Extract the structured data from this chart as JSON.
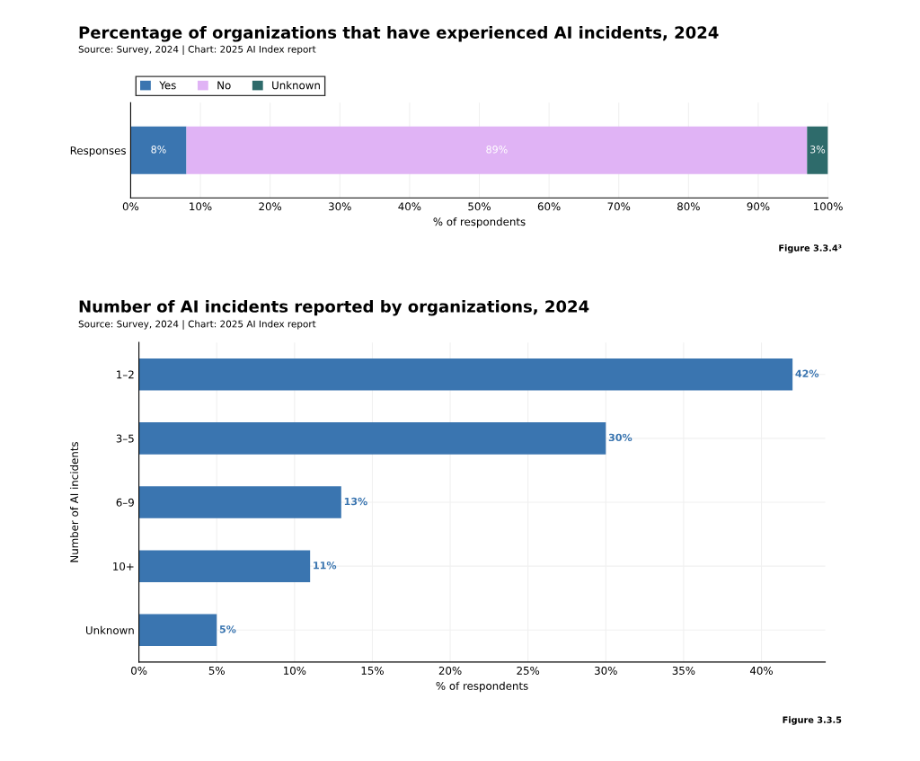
{
  "chart_data": [
    {
      "type": "bar",
      "orientation": "horizontal",
      "stacked": true,
      "title": "Percentage of organizations that have experienced AI incidents, 2024",
      "subtitle": "Source: Survey, 2024 | Chart: 2025 AI Index report",
      "xlabel": "% of respondents",
      "categories": [
        "Responses"
      ],
      "series": [
        {
          "name": "Yes",
          "color": "#3a75b0",
          "values": [
            8
          ],
          "value_labels": [
            "8%"
          ]
        },
        {
          "name": "No",
          "color": "#e0b3f5",
          "values": [
            89
          ],
          "value_labels": [
            "89%"
          ]
        },
        {
          "name": "Unknown",
          "color": "#2e6b6b",
          "values": [
            3
          ],
          "value_labels": [
            "3%"
          ]
        }
      ],
      "xlim": [
        0,
        100
      ],
      "xticks": [
        {
          "value": 0,
          "label": "0%"
        },
        {
          "value": 10,
          "label": "10%"
        },
        {
          "value": 20,
          "label": "20%"
        },
        {
          "value": 30,
          "label": "30%"
        },
        {
          "value": 40,
          "label": "40%"
        },
        {
          "value": 50,
          "label": "50%"
        },
        {
          "value": 60,
          "label": "60%"
        },
        {
          "value": 70,
          "label": "70%"
        },
        {
          "value": 80,
          "label": "80%"
        },
        {
          "value": 90,
          "label": "90%"
        },
        {
          "value": 100,
          "label": "100%"
        }
      ],
      "grid": "x",
      "legend": "top left",
      "annotations": [
        "Figure 3.3.4³"
      ]
    },
    {
      "type": "bar",
      "orientation": "horizontal",
      "title": "Number of AI incidents reported by organizations, 2024",
      "subtitle": "Source: Survey, 2024 | Chart: 2025 AI Index report",
      "xlabel": "% of respondents",
      "ylabel": "Number of AI incidents",
      "categories": [
        "1–2",
        "3–5",
        "6–9",
        "10+",
        "Unknown"
      ],
      "series": [
        {
          "color": "#3a75b0",
          "values": [
            42,
            30,
            13,
            11,
            5
          ],
          "value_labels": [
            "42%",
            "30%",
            "13%",
            "11%",
            "5%"
          ]
        }
      ],
      "xlim": [
        0,
        44.1
      ],
      "xticks": [
        {
          "value": 0,
          "label": "0%"
        },
        {
          "value": 5,
          "label": "5%"
        },
        {
          "value": 10,
          "label": "10%"
        },
        {
          "value": 15,
          "label": "15%"
        },
        {
          "value": 20,
          "label": "20%"
        },
        {
          "value": 25,
          "label": "25%"
        },
        {
          "value": 30,
          "label": "30%"
        },
        {
          "value": 35,
          "label": "35%"
        },
        {
          "value": 40,
          "label": "40%"
        }
      ],
      "grid": true,
      "annotations": [
        "Figure 3.3.5"
      ]
    }
  ]
}
